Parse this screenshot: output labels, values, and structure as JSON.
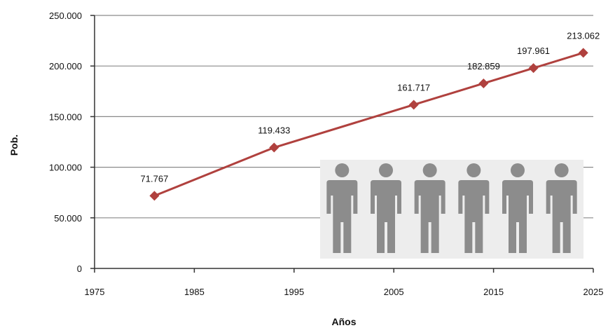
{
  "chart_data": {
    "type": "line",
    "xlabel": "Años",
    "ylabel": "Pob.",
    "xlim": [
      1975,
      2025
    ],
    "ylim": [
      0,
      250000
    ],
    "x_ticks": [
      "1975",
      "1985",
      "1995",
      "2005",
      "2015",
      "2025"
    ],
    "y_ticks": [
      "0",
      "50.000",
      "100.000",
      "150.000",
      "200.000",
      "250.000"
    ],
    "grid": "horizontal",
    "series": [
      {
        "color": "#b0413e",
        "marker": "diamond",
        "x": [
          1981,
          1993,
          2007,
          2014,
          2019,
          2024
        ],
        "values": [
          71767,
          119433,
          161717,
          182859,
          197961,
          213062
        ],
        "labels": [
          "71.767",
          "119.433",
          "161.717",
          "182.859",
          "197.961",
          "213.062"
        ]
      }
    ]
  },
  "decoration": {
    "icon": "person-icon",
    "count": 6,
    "background": "#ededed",
    "icon_color": "#8c8c8c"
  }
}
